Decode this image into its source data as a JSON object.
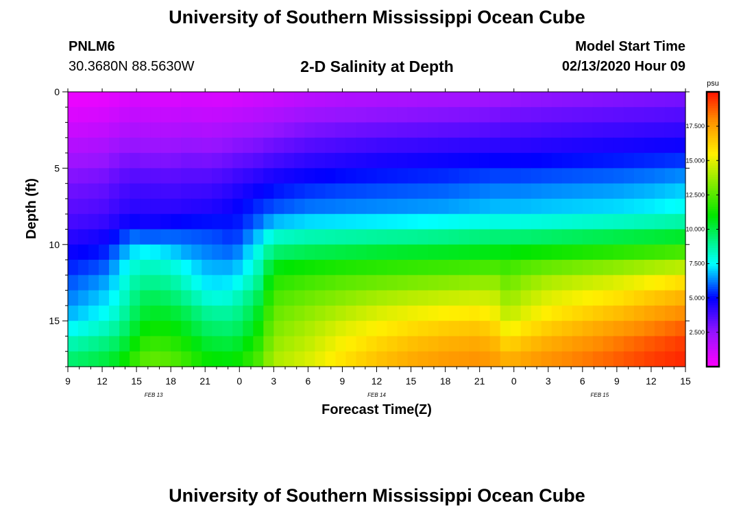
{
  "header": {
    "title_top": "University of Southern Mississippi Ocean Cube",
    "title_bottom": "University of Southern Mississippi Ocean Cube",
    "station": "PNLM6",
    "coords": "30.3680N 88.5630W",
    "plot_title": "2-D Salinity at Depth",
    "model_label": "Model Start Time",
    "model_time": "02/13/2020 Hour 09"
  },
  "chart_data": {
    "type": "heatmap",
    "title": "2-D Salinity at Depth",
    "xlabel": "Forecast Time(Z)",
    "ylabel": "Depth (ft)",
    "x_range_hours": [
      0,
      54
    ],
    "x_tick_labels": [
      "9",
      "12",
      "15",
      "18",
      "21",
      "0",
      "3",
      "6",
      "9",
      "12",
      "15",
      "18",
      "21",
      "0",
      "3",
      "6",
      "9",
      "12",
      "15"
    ],
    "day_labels": [
      "FEB 13",
      "FEB 14",
      "FEB 15"
    ],
    "day_label_hours": [
      7.5,
      27,
      46.5
    ],
    "y_range": [
      0,
      18
    ],
    "y_ticks": [
      0,
      5,
      10,
      15
    ],
    "colorbar": {
      "unit": "psu",
      "range": [
        0,
        20
      ],
      "ticks": [
        "2.500",
        "5.000",
        "7.500",
        "10.000",
        "12.500",
        "15.000",
        "17.500"
      ],
      "tick_values": [
        2.5,
        5,
        7.5,
        10,
        12.5,
        15,
        17.5
      ]
    },
    "time_keys": [
      0,
      3,
      4.5,
      5.5,
      7,
      9,
      10.5,
      12,
      13.5,
      14.5,
      15.5,
      16.5,
      18,
      21,
      24,
      27,
      30,
      33,
      36,
      37.5,
      38.5,
      39.5,
      42,
      45,
      48,
      51,
      54
    ],
    "depth_keys": [
      0,
      2,
      4,
      6,
      8,
      9,
      10,
      11,
      12,
      13,
      14,
      15,
      16,
      17,
      18
    ],
    "salinity": [
      [
        0.3,
        0.4,
        0.6,
        0.8,
        0.8,
        0.7,
        0.8,
        0.8,
        0.7,
        0.8,
        0.9,
        1.0,
        1.1,
        1.4,
        1.6,
        1.7,
        1.8,
        1.9,
        2.0,
        2.1,
        2.2,
        2.3,
        2.4,
        2.5,
        2.6,
        2.7,
        2.8
      ],
      [
        1.0,
        1.2,
        1.5,
        1.7,
        1.6,
        1.6,
        1.7,
        1.6,
        1.7,
        1.8,
        1.9,
        2.0,
        2.2,
        2.6,
        2.8,
        2.9,
        3.0,
        3.1,
        3.2,
        3.3,
        3.4,
        3.4,
        3.5,
        3.6,
        3.7,
        3.8,
        3.9
      ],
      [
        2.0,
        2.2,
        2.6,
        2.8,
        2.6,
        2.6,
        2.8,
        2.7,
        2.8,
        3.0,
        3.1,
        3.2,
        3.5,
        3.9,
        4.1,
        4.3,
        4.4,
        4.5,
        4.6,
        4.6,
        4.6,
        4.6,
        4.7,
        4.8,
        4.9,
        5.0,
        5.1
      ],
      [
        3.0,
        3.2,
        3.6,
        3.8,
        3.8,
        3.7,
        3.8,
        3.8,
        4.0,
        4.2,
        4.4,
        4.6,
        4.9,
        5.2,
        5.4,
        5.5,
        5.6,
        5.7,
        5.9,
        6.0,
        6.0,
        6.0,
        6.1,
        6.2,
        6.3,
        6.5,
        6.8
      ],
      [
        3.6,
        3.8,
        4.2,
        4.4,
        4.4,
        4.4,
        4.5,
        4.6,
        4.8,
        5.0,
        5.3,
        5.6,
        6.0,
        6.4,
        6.5,
        6.6,
        6.7,
        6.8,
        7.0,
        7.1,
        7.1,
        7.1,
        7.2,
        7.3,
        7.4,
        7.6,
        7.9
      ],
      [
        4.0,
        4.3,
        4.8,
        5.4,
        5.0,
        5.4,
        5.6,
        5.6,
        5.5,
        5.2,
        5.6,
        6.2,
        7.6,
        7.9,
        8.0,
        8.1,
        8.2,
        8.4,
        8.6,
        8.7,
        8.7,
        8.7,
        8.8,
        9.0,
        9.2,
        9.4,
        9.6
      ],
      [
        4.6,
        5.0,
        5.8,
        6.8,
        6.8,
        6.6,
        6.2,
        6.0,
        5.8,
        5.6,
        6.5,
        7.4,
        8.8,
        9.2,
        9.4,
        9.6,
        9.7,
        9.8,
        10.0,
        10.1,
        10.1,
        10.2,
        10.4,
        10.6,
        10.8,
        11.0,
        11.3
      ],
      [
        5.0,
        5.4,
        6.6,
        7.6,
        8.2,
        7.6,
        7.0,
        6.6,
        6.4,
        6.4,
        7.2,
        8.0,
        10.2,
        10.6,
        10.8,
        11.0,
        11.2,
        11.3,
        11.4,
        11.5,
        11.6,
        11.8,
        12.0,
        12.3,
        12.6,
        13.0,
        13.3
      ],
      [
        5.6,
        6.2,
        7.2,
        8.4,
        8.6,
        8.6,
        7.8,
        7.0,
        7.0,
        7.0,
        7.6,
        8.4,
        11.4,
        11.8,
        12.2,
        12.4,
        12.6,
        12.8,
        13.0,
        13.1,
        12.4,
        13.0,
        13.6,
        14.0,
        14.4,
        14.9,
        15.4
      ],
      [
        6.0,
        6.8,
        7.6,
        8.8,
        9.6,
        9.2,
        8.4,
        7.6,
        7.4,
        7.8,
        8.6,
        9.2,
        12.0,
        12.6,
        13.0,
        13.4,
        13.7,
        14.0,
        14.2,
        14.1,
        13.2,
        13.8,
        14.6,
        15.0,
        15.4,
        16.0,
        16.6
      ],
      [
        6.4,
        7.2,
        8.0,
        9.2,
        10.2,
        10.0,
        9.4,
        8.6,
        8.4,
        8.6,
        9.2,
        10.0,
        12.6,
        13.2,
        13.8,
        14.4,
        14.8,
        15.0,
        15.2,
        14.8,
        13.8,
        14.4,
        15.2,
        15.8,
        16.3,
        17.0,
        17.6
      ],
      [
        7.0,
        7.8,
        8.6,
        9.8,
        10.8,
        10.8,
        10.2,
        9.4,
        9.2,
        9.2,
        9.8,
        10.6,
        13.0,
        13.8,
        14.6,
        15.2,
        15.6,
        16.0,
        16.2,
        15.6,
        14.6,
        15.2,
        16.0,
        16.6,
        17.2,
        17.8,
        18.4
      ],
      [
        8.0,
        8.8,
        9.4,
        10.4,
        11.6,
        11.4,
        10.8,
        10.0,
        9.8,
        9.8,
        10.4,
        11.2,
        13.4,
        14.2,
        15.2,
        15.8,
        16.4,
        16.8,
        17.0,
        16.6,
        15.6,
        16.2,
        16.8,
        17.4,
        18.0,
        18.6,
        19.2
      ],
      [
        9.0,
        9.6,
        10.2,
        11.2,
        12.4,
        12.2,
        11.6,
        10.8,
        10.6,
        10.6,
        11.2,
        11.8,
        13.8,
        14.6,
        15.6,
        16.4,
        17.0,
        17.4,
        17.6,
        17.2,
        16.6,
        17.0,
        17.6,
        18.1,
        18.6,
        19.2,
        19.6
      ],
      [
        9.8,
        10.4,
        11.0,
        12.0,
        13.0,
        12.8,
        12.2,
        11.4,
        11.2,
        11.2,
        11.8,
        12.4,
        14.2,
        15.0,
        16.0,
        16.8,
        17.4,
        17.8,
        18.0,
        17.8,
        17.4,
        17.6,
        18.0,
        18.4,
        18.9,
        19.4,
        19.8
      ]
    ]
  }
}
